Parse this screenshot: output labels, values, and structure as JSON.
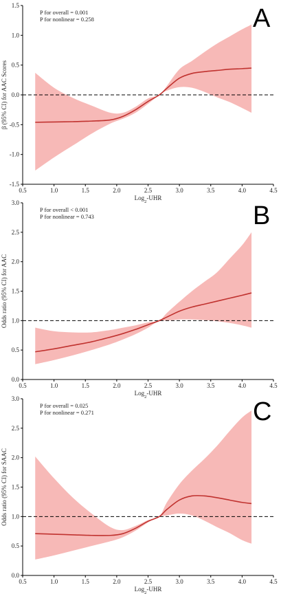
{
  "colors": {
    "band": "#f7b9b7",
    "line": "#c0322f"
  },
  "chart_data": [
    {
      "type": "line",
      "panel_label": "A",
      "annotations": [
        "P for overall = 0.001",
        "P for nonlinear = 0.258"
      ],
      "xlabel_main": "Log",
      "xlabel_sub": "2",
      "xlabel_tail": "-UHR",
      "ylabel": "β (95% CI) for AAC Scores",
      "xlim": [
        0.5,
        4.5
      ],
      "ylim": [
        -1.5,
        1.5
      ],
      "xticks": [
        "0.5",
        "1.0",
        "1.5",
        "2.0",
        "2.5",
        "3.0",
        "3.5",
        "4.0",
        "4.5"
      ],
      "yticks": [
        "-1.5",
        "-1.0",
        "-0.5",
        "0.0",
        "0.5",
        "1.0",
        "1.5"
      ],
      "reference_y": 0,
      "x": [
        0.7,
        1.0,
        1.3,
        1.6,
        1.9,
        2.1,
        2.3,
        2.5,
        2.68,
        2.8,
        3.0,
        3.2,
        3.4,
        3.6,
        3.8,
        4.0,
        4.15
      ],
      "y": [
        -0.46,
        -0.455,
        -0.45,
        -0.44,
        -0.42,
        -0.36,
        -0.25,
        -0.11,
        0.0,
        0.11,
        0.28,
        0.36,
        0.39,
        0.41,
        0.43,
        0.44,
        0.45
      ],
      "lower": [
        -1.27,
        -1.05,
        -0.85,
        -0.65,
        -0.48,
        -0.4,
        -0.3,
        -0.15,
        0.0,
        0.07,
        0.13,
        0.12,
        0.05,
        -0.04,
        -0.12,
        -0.22,
        -0.3
      ],
      "upper": [
        0.37,
        0.12,
        -0.05,
        -0.18,
        -0.3,
        -0.3,
        -0.2,
        -0.06,
        0.0,
        0.15,
        0.43,
        0.57,
        0.72,
        0.86,
        0.98,
        1.1,
        1.18
      ]
    },
    {
      "type": "line",
      "panel_label": "B",
      "annotations": [
        "P for overall < 0.001",
        "P for nonlinear = 0.743"
      ],
      "xlabel_main": "Log",
      "xlabel_sub": "2",
      "xlabel_tail": "-UHR",
      "ylabel": "Odds ratio (95% CI) for AAC",
      "xlim": [
        0.5,
        4.5
      ],
      "ylim": [
        0.0,
        3.0
      ],
      "xticks": [
        "0.5",
        "1.0",
        "1.5",
        "2.0",
        "2.5",
        "3.0",
        "3.5",
        "4.0",
        "4.5"
      ],
      "yticks": [
        "0.0",
        "0.5",
        "1.0",
        "1.5",
        "2.0",
        "2.5",
        "3.0"
      ],
      "reference_y": 1,
      "x": [
        0.7,
        1.0,
        1.3,
        1.6,
        1.9,
        2.1,
        2.3,
        2.5,
        2.68,
        2.8,
        3.0,
        3.2,
        3.4,
        3.6,
        3.8,
        4.0,
        4.15
      ],
      "y": [
        0.47,
        0.52,
        0.58,
        0.64,
        0.72,
        0.78,
        0.85,
        0.93,
        1.0,
        1.06,
        1.16,
        1.23,
        1.28,
        1.33,
        1.38,
        1.43,
        1.47
      ],
      "lower": [
        0.26,
        0.33,
        0.41,
        0.5,
        0.6,
        0.68,
        0.77,
        0.88,
        1.0,
        1.0,
        1.02,
        1.02,
        1.01,
        0.99,
        0.96,
        0.92,
        0.88
      ],
      "upper": [
        0.88,
        0.82,
        0.8,
        0.8,
        0.84,
        0.88,
        0.92,
        0.97,
        1.0,
        1.13,
        1.32,
        1.5,
        1.66,
        1.82,
        2.05,
        2.28,
        2.5
      ]
    },
    {
      "type": "line",
      "panel_label": "C",
      "annotations": [
        "P for overall = 0.025",
        "P for nonlinear = 0.271"
      ],
      "xlabel_main": "Log",
      "xlabel_sub": "2",
      "xlabel_tail": "-UHR",
      "ylabel": "Odds ratio (95% CI) for SAAC",
      "xlim": [
        0.5,
        4.5
      ],
      "ylim": [
        0.0,
        3.0
      ],
      "xticks": [
        "0.5",
        "1.0",
        "1.5",
        "2.0",
        "2.5",
        "3.0",
        "3.5",
        "4.0",
        "4.5"
      ],
      "yticks": [
        "0.0",
        "0.5",
        "1.0",
        "1.5",
        "2.0",
        "2.5",
        "3.0"
      ],
      "reference_y": 1,
      "x": [
        0.7,
        1.0,
        1.3,
        1.6,
        1.9,
        2.1,
        2.3,
        2.5,
        2.68,
        2.8,
        3.0,
        3.2,
        3.4,
        3.6,
        3.8,
        4.0,
        4.15
      ],
      "y": [
        0.71,
        0.7,
        0.69,
        0.68,
        0.68,
        0.71,
        0.8,
        0.92,
        1.0,
        1.12,
        1.28,
        1.35,
        1.35,
        1.32,
        1.28,
        1.24,
        1.22
      ],
      "lower": [
        0.27,
        0.34,
        0.42,
        0.5,
        0.58,
        0.65,
        0.76,
        0.9,
        1.0,
        1.02,
        1.05,
        1.02,
        0.93,
        0.82,
        0.72,
        0.6,
        0.54
      ],
      "upper": [
        2.02,
        1.65,
        1.32,
        1.05,
        0.82,
        0.77,
        0.84,
        0.94,
        1.0,
        1.24,
        1.55,
        1.78,
        1.98,
        2.2,
        2.45,
        2.68,
        2.8
      ]
    }
  ]
}
